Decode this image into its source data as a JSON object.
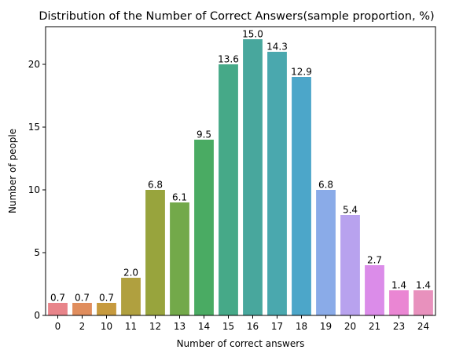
{
  "chart_data": {
    "type": "bar",
    "title": "Distribution of the Number of Correct Answers(sample proportion, %)",
    "xlabel": "Number of correct answers",
    "ylabel": "Number of people",
    "ylim": [
      0,
      23
    ],
    "yticks": [
      0,
      5,
      10,
      15,
      20
    ],
    "grid": false,
    "categories": [
      "0",
      "2",
      "10",
      "11",
      "12",
      "13",
      "14",
      "15",
      "16",
      "17",
      "18",
      "19",
      "20",
      "21",
      "23",
      "24"
    ],
    "values": [
      1,
      1,
      1,
      3,
      10,
      9,
      14,
      20,
      22,
      21,
      19,
      10,
      8,
      4,
      2,
      2
    ],
    "data_labels": [
      "0.7",
      "0.7",
      "0.7",
      "2.0",
      "6.8",
      "6.1",
      "9.5",
      "13.6",
      "15.0",
      "14.3",
      "12.9",
      "6.8",
      "5.4",
      "2.7",
      "1.4",
      "1.4"
    ],
    "colors": [
      "#e8848a",
      "#e08d5d",
      "#c69a3e",
      "#b0a03f",
      "#98a43d",
      "#73a94a",
      "#4aab63",
      "#46a988",
      "#48a79d",
      "#4aa8ae",
      "#4ca6c9",
      "#8aabe8",
      "#b8a2ee",
      "#db8ce9",
      "#ea86d3",
      "#e891bd"
    ]
  }
}
